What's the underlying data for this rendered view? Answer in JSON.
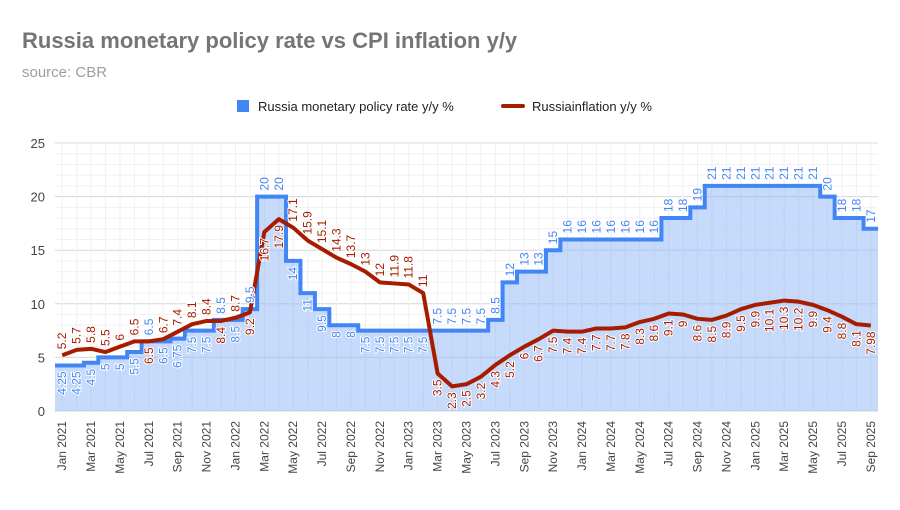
{
  "chart_data": {
    "type": "line",
    "title": "Russia monetary policy rate vs CPI inflation y/y",
    "subtitle": "source: CBR",
    "legend_position": "top",
    "grid": true,
    "ylim": [
      0,
      25
    ],
    "yticks": [
      0,
      5,
      10,
      15,
      20,
      25
    ],
    "x": [
      "Jan 2021",
      "Feb 2021",
      "Mar 2021",
      "Apr 2021",
      "May 2021",
      "Jun 2021",
      "Jul 2021",
      "Aug 2021",
      "Sep 2021",
      "Oct 2021",
      "Nov 2021",
      "Dec 2021",
      "Jan 2022",
      "Feb 2022",
      "Mar 2022",
      "Apr 2022",
      "May 2022",
      "Jun 2022",
      "Jul 2022",
      "Aug 2022",
      "Sep 2022",
      "Oct 2022",
      "Nov 2022",
      "Dec 2022",
      "Jan 2023",
      "Feb 2023",
      "Mar 2023",
      "Apr 2023",
      "May 2023",
      "Jun 2023",
      "Jul 2023",
      "Aug 2023",
      "Sep 2023",
      "Oct 2023",
      "Nov 2023",
      "Dec 2023",
      "Jan 2024",
      "Feb 2024",
      "Mar 2024",
      "Apr 2024",
      "May 2024",
      "Jun 2024",
      "Jul 2024",
      "Aug 2024",
      "Sep 2024",
      "Oct 2024",
      "Nov 2024",
      "Dec 2024",
      "Jan 2025",
      "Feb 2025",
      "Mar 2025",
      "Apr 2025",
      "May 2025",
      "Jun 2025",
      "Jul 2025",
      "Aug 2025",
      "Sep 2025"
    ],
    "series": [
      {
        "name": "Russia monetary policy rate y/y %",
        "type": "stepped-area",
        "color": "#4285f4",
        "values": [
          4.25,
          4.25,
          4.5,
          5,
          5,
          5.5,
          6.5,
          6.5,
          6.75,
          7.5,
          7.5,
          8.5,
          8.5,
          9.5,
          20,
          20,
          14,
          11,
          9.5,
          8,
          8,
          7.5,
          7.5,
          7.5,
          7.5,
          7.5,
          7.5,
          7.5,
          7.5,
          7.5,
          8.5,
          12,
          13,
          13,
          15,
          16,
          16,
          16,
          16,
          16,
          16,
          16,
          18,
          18,
          19,
          21,
          21,
          21,
          21,
          21,
          21,
          21,
          21,
          20,
          18,
          18,
          17
        ]
      },
      {
        "name": "Russiainflation y/y %",
        "type": "line",
        "color": "#a61c00",
        "values": [
          5.2,
          5.7,
          5.8,
          5.5,
          6.0,
          6.5,
          6.5,
          6.7,
          7.4,
          8.1,
          8.4,
          8.4,
          8.7,
          9.2,
          16.7,
          17.9,
          17.1,
          15.9,
          15.1,
          14.3,
          13.7,
          13,
          12,
          11.9,
          11.8,
          11,
          3.5,
          2.3,
          2.5,
          3.2,
          4.3,
          5.2,
          6,
          6.7,
          7.5,
          7.4,
          7.4,
          7.7,
          7.7,
          7.8,
          8.3,
          8.6,
          9.1,
          9,
          8.6,
          8.5,
          8.9,
          9.5,
          9.9,
          10.1,
          10.3,
          10.2,
          9.9,
          9.4,
          8.8,
          8.1,
          7.98
        ]
      }
    ]
  }
}
